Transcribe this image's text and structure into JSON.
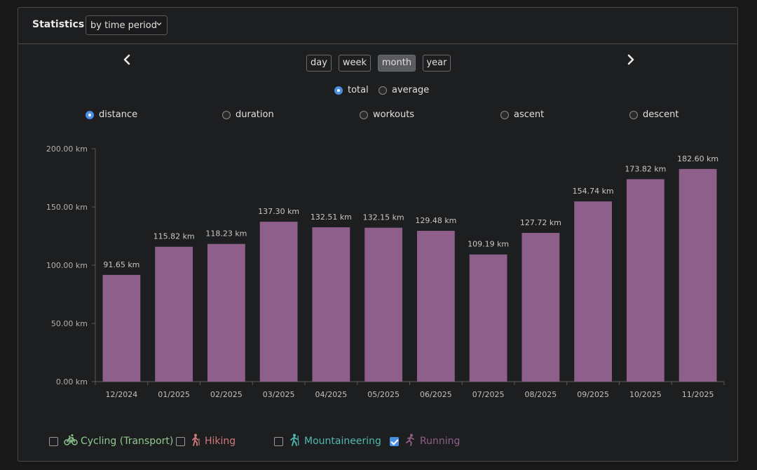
{
  "header": {
    "title": "Statistics",
    "mode_select": "by time period"
  },
  "periods": [
    {
      "label": "day",
      "active": false
    },
    {
      "label": "week",
      "active": false
    },
    {
      "label": "month",
      "active": true
    },
    {
      "label": "year",
      "active": false
    }
  ],
  "aggregation": [
    {
      "label": "total",
      "checked": true
    },
    {
      "label": "average",
      "checked": false
    }
  ],
  "metrics": [
    {
      "label": "distance",
      "checked": true
    },
    {
      "label": "duration",
      "checked": false
    },
    {
      "label": "workouts",
      "checked": false
    },
    {
      "label": "ascent",
      "checked": false
    },
    {
      "label": "descent",
      "checked": false
    }
  ],
  "sports": [
    {
      "label": "Cycling (Transport)",
      "checked": false,
      "color": "#8fc98f",
      "icon": "bicycle-icon"
    },
    {
      "label": "Hiking",
      "checked": false,
      "color": "#d07a7a",
      "icon": "hiking-icon"
    },
    {
      "label": "Mountaineering",
      "checked": false,
      "color": "#4fb8b0",
      "icon": "mountaineering-icon"
    },
    {
      "label": "Running",
      "checked": true,
      "color": "#8e5f8a",
      "icon": "running-icon"
    }
  ],
  "chart_data": {
    "type": "bar",
    "categories": [
      "12/2024",
      "01/2025",
      "02/2025",
      "03/2025",
      "04/2025",
      "05/2025",
      "06/2025",
      "07/2025",
      "08/2025",
      "09/2025",
      "10/2025",
      "11/2025"
    ],
    "values": [
      91.65,
      115.82,
      118.23,
      137.3,
      132.51,
      132.15,
      129.48,
      109.19,
      127.72,
      154.74,
      173.82,
      182.6
    ],
    "value_labels": [
      "91.65 km",
      "115.82 km",
      "118.23 km",
      "137.30 km",
      "132.51 km",
      "132.15 km",
      "129.48 km",
      "109.19 km",
      "127.72 km",
      "154.74 km",
      "173.82 km",
      "182.60 km"
    ],
    "yticks": [
      0,
      50,
      100,
      150,
      200
    ],
    "ytick_labels": [
      "0.00 km",
      "50.00 km",
      "100.00 km",
      "150.00 km",
      "200.00 km"
    ],
    "ylim": [
      0,
      200
    ],
    "bar_color": "#8e5f8a",
    "grid": false
  }
}
